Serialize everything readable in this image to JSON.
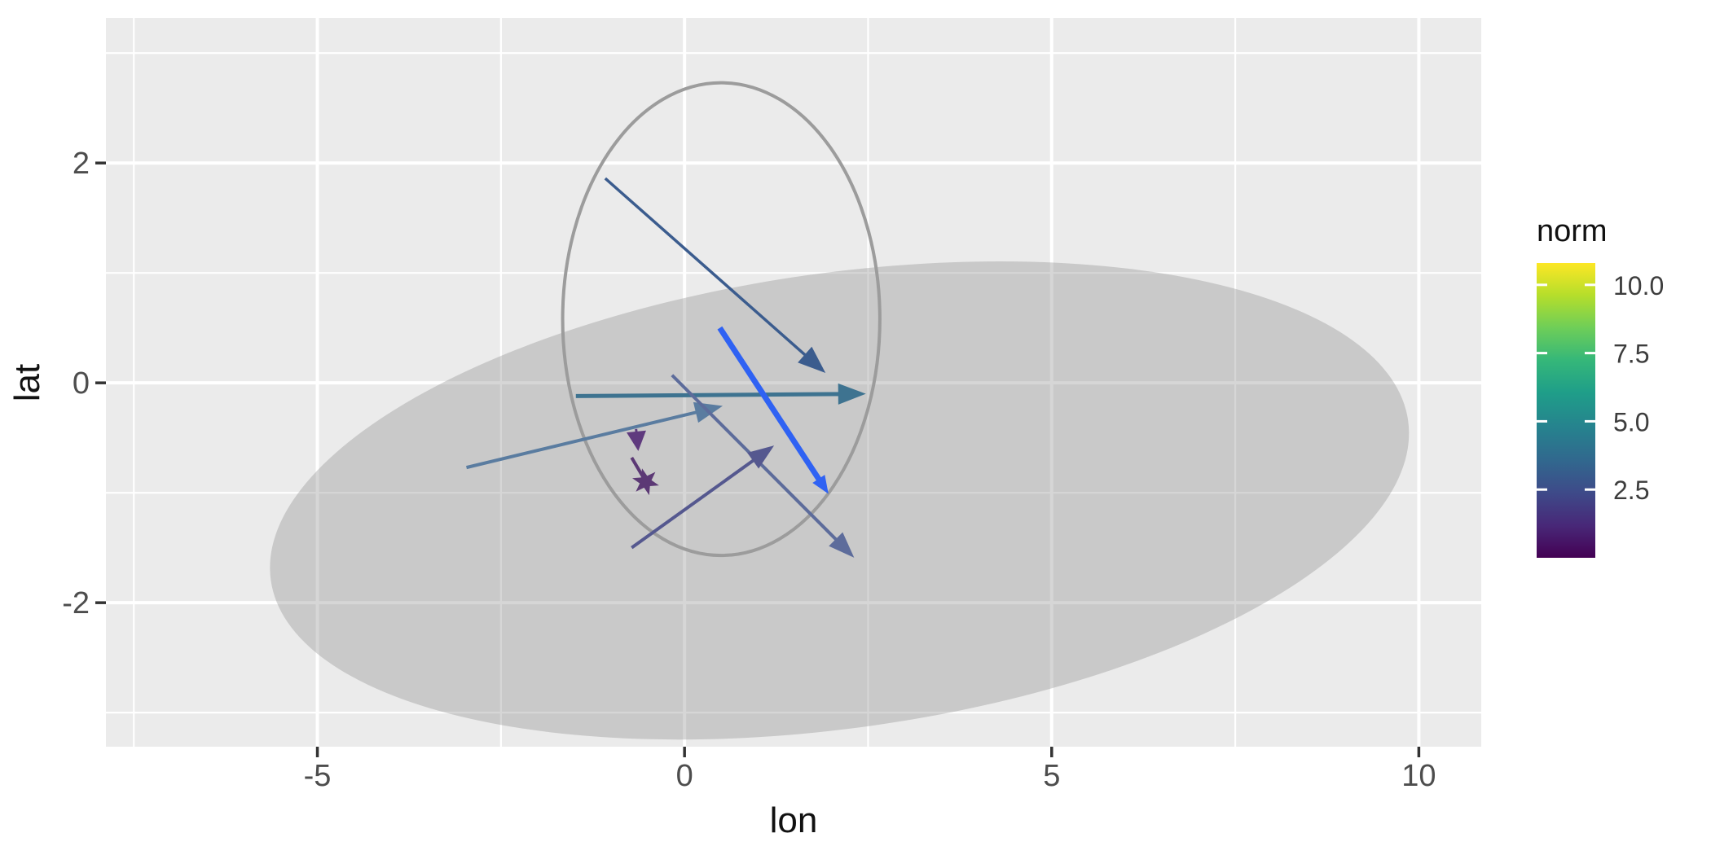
{
  "chart_data": {
    "type": "scatter",
    "subtype": "quiver-vectors-with-ellipses",
    "title": "",
    "xlabel": "lon",
    "ylabel": "lat",
    "x_range": [
      -7.88,
      10.85
    ],
    "y_range": [
      -3.31,
      3.32
    ],
    "grid": true,
    "panel_bg": "#ebebeb",
    "grid_major_color": "#ffffff",
    "grid_minor_color": "#ffffff",
    "tick_color": "#333333",
    "axis_text_color": "#4d4d4d",
    "x_ticks": [
      {
        "v": -5,
        "label": "-5"
      },
      {
        "v": 0,
        "label": "0"
      },
      {
        "v": 5,
        "label": "5"
      },
      {
        "v": 10,
        "label": "10"
      }
    ],
    "x_minor": [
      -7.5,
      -2.5,
      2.5,
      7.5
    ],
    "y_ticks": [
      {
        "v": 2,
        "label": "2"
      },
      {
        "v": 0,
        "label": "0"
      },
      {
        "v": -2,
        "label": "-2"
      }
    ],
    "y_minor": [
      3,
      1,
      -1,
      -3
    ],
    "ellipses": [
      {
        "name": "confidence-ellipse-large",
        "cx": 2.11,
        "cy": -1.07,
        "rx": 7.82,
        "ry": 2.07,
        "rotate_deg": -8,
        "fill": "rgba(138,138,138,0.35)",
        "stroke": "none",
        "stroke_width": 0
      },
      {
        "name": "confidence-ellipse-small",
        "cx": 0.5,
        "cy": 0.58,
        "rx": 2.16,
        "ry": 2.15,
        "rotate_deg": 0,
        "fill": "none",
        "stroke": "#9c9c9c",
        "stroke_width": 4
      }
    ],
    "arrows": [
      {
        "x1": -1.08,
        "y1": 1.86,
        "x2": 1.92,
        "y2": 0.09,
        "norm": 3.5,
        "color": "#3b5c8e",
        "width": 3.5,
        "head_l": 34,
        "head_w": 13
      },
      {
        "x1": -1.48,
        "y1": -0.12,
        "x2": 2.47,
        "y2": -0.1,
        "norm": 4.7,
        "color": "#3e7390",
        "width": 5,
        "head_l": 34,
        "head_w": 13
      },
      {
        "x1": -2.97,
        "y1": -0.77,
        "x2": 0.52,
        "y2": -0.21,
        "norm": 5.0,
        "color": "#5a7ca0",
        "width": 4,
        "head_l": 34,
        "head_w": 13
      },
      {
        "x1": 0.48,
        "y1": 0.5,
        "x2": 1.96,
        "y2": -1.01,
        "norm": null,
        "color": "#2f62f3",
        "width": 7,
        "head_l": 22,
        "head_w": 9
      },
      {
        "x1": -0.17,
        "y1": 0.07,
        "x2": 2.31,
        "y2": -1.59,
        "norm": 2.6,
        "color": "#5d6c9b",
        "width": 4,
        "head_l": 32,
        "head_w": 12
      },
      {
        "x1": -0.72,
        "y1": -1.5,
        "x2": 1.22,
        "y2": -0.57,
        "norm": 2.2,
        "color": "#55588f",
        "width": 4,
        "head_l": 32,
        "head_w": 12
      },
      {
        "x1": -0.66,
        "y1": -0.42,
        "x2": -0.63,
        "y2": -0.62,
        "norm": 1.2,
        "color": "#5f3a7e",
        "width": 3,
        "head_l": 24,
        "head_w": 12
      },
      {
        "x1": -0.72,
        "y1": -0.68,
        "x2": -0.535,
        "y2": -0.89,
        "norm": 1.0,
        "color": "#5c3975",
        "width": 4,
        "head_l": 0,
        "head_w": 0
      }
    ],
    "star_marker": {
      "x": -0.53,
      "y": -0.9,
      "outer_r": 17,
      "inner_r": 7.5,
      "points": 6,
      "rotate_deg": -15,
      "color": "#5c3975"
    },
    "legend": {
      "title": "norm",
      "range": [
        0,
        10.8
      ],
      "ticks": [
        {
          "v": 10,
          "label": "10.0"
        },
        {
          "v": 7.5,
          "label": "7.5"
        },
        {
          "v": 5,
          "label": "5.0"
        },
        {
          "v": 2.5,
          "label": "2.5"
        }
      ],
      "colormap": "viridis",
      "stops": [
        [
          "0",
          "#fde725"
        ],
        [
          "0.11",
          "#b5de2b"
        ],
        [
          "0.22",
          "#6ece58"
        ],
        [
          "0.33",
          "#35b779"
        ],
        [
          "0.44",
          "#1f9e89"
        ],
        [
          "0.56",
          "#26828e"
        ],
        [
          "0.67",
          "#31688e"
        ],
        [
          "0.78",
          "#3e4a89"
        ],
        [
          "0.89",
          "#482878"
        ],
        [
          "1",
          "#440154"
        ]
      ]
    }
  }
}
